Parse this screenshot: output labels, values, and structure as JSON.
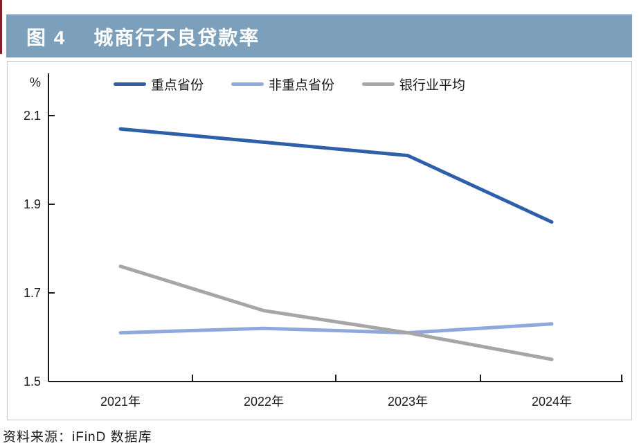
{
  "figure": {
    "title_label": "图 4",
    "title": "城商行不良贷款率",
    "source": "资料来源：iFinD 数据库"
  },
  "colors": {
    "accent_red": "#7d2129",
    "title_bar_bg": "#7ca0bc",
    "title_text": "#ffffff",
    "panel_border": "#c9c9c9",
    "axis": "#1a1a1a",
    "key_provinces": "#2e5fa8",
    "non_key_provinces": "#8fa9dc",
    "industry_average": "#a6a6a6"
  },
  "chart_data": {
    "type": "line",
    "title": "城商行不良贷款率",
    "unit_label": "%",
    "categories": [
      "2021年",
      "2022年",
      "2023年",
      "2024年"
    ],
    "series": [
      {
        "name": "重点省份",
        "color": "#2e5fa8",
        "values": [
          2.07,
          2.04,
          2.01,
          1.86
        ]
      },
      {
        "name": "非重点省份",
        "color": "#8fa9dc",
        "values": [
          1.61,
          1.62,
          1.61,
          1.63
        ]
      },
      {
        "name": "银行业平均",
        "color": "#a6a6a6",
        "values": [
          1.76,
          1.66,
          1.61,
          1.55
        ]
      }
    ],
    "ylim": [
      1.5,
      2.1
    ],
    "yticks": [
      2.1,
      1.9,
      1.7,
      1.5
    ],
    "legend_position": "top",
    "grid": false
  }
}
